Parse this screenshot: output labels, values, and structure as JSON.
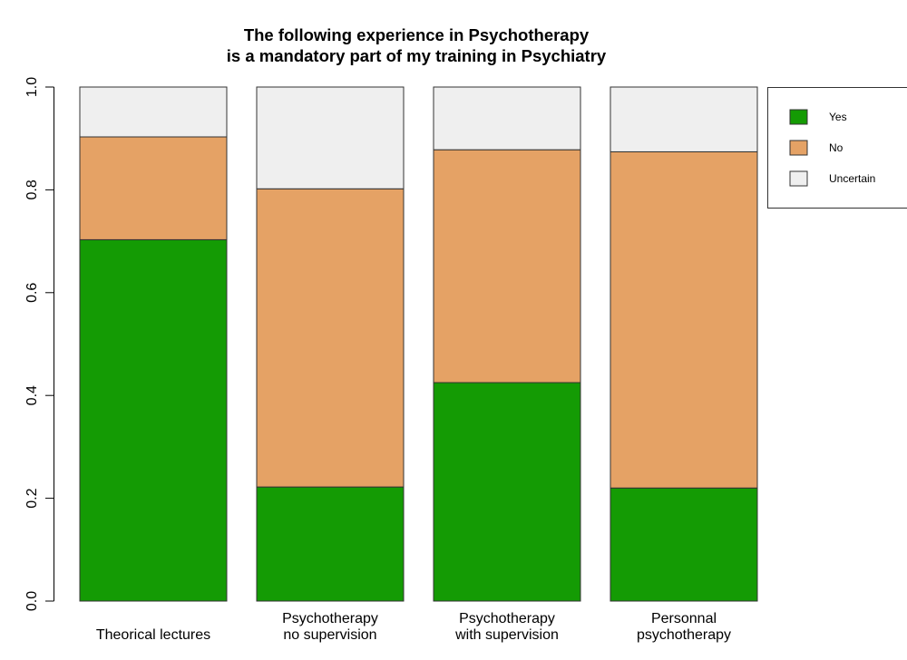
{
  "chart_data": {
    "type": "bar",
    "stacked": true,
    "title": [
      "The following experience in Psychotherapy",
      "is a mandatory part of my training in Psychiatry"
    ],
    "xlabel": "",
    "ylabel": "",
    "ylim": [
      0,
      1
    ],
    "yticks": [
      "0.0",
      "0.2",
      "0.4",
      "0.6",
      "0.8",
      "1.0"
    ],
    "categories": [
      [
        "Theorical lectures"
      ],
      [
        "Psychotherapy",
        "no supervision"
      ],
      [
        "Psychotherapy",
        "with supervision"
      ],
      [
        "Personnal",
        "psychotherapy"
      ]
    ],
    "series": [
      {
        "name": "Yes",
        "color": "#149b04",
        "values": [
          0.703,
          0.222,
          0.425,
          0.22
        ]
      },
      {
        "name": "No",
        "color": "#e5a265",
        "values": [
          0.2,
          0.58,
          0.453,
          0.654
        ]
      },
      {
        "name": "Uncertain",
        "color": "#efefef",
        "values": [
          0.097,
          0.198,
          0.122,
          0.126
        ]
      }
    ],
    "legend": {
      "position": "top-right"
    },
    "grid": false
  }
}
